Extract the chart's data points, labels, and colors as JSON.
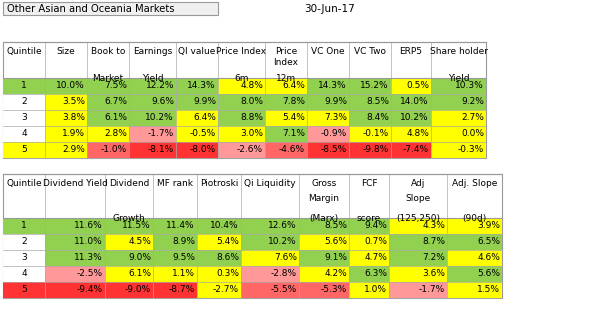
{
  "title_left": "Other Asian and Oceania Markets",
  "title_right": "30-Jun-17",
  "table1_data": [
    [
      "1",
      "10.0%",
      "7.5%",
      "12.2%",
      "14.3%",
      "4.8%",
      "6.4%",
      "14.3%",
      "15.2%",
      "0.5%",
      "10.3%"
    ],
    [
      "2",
      "3.5%",
      "6.7%",
      "9.6%",
      "9.9%",
      "8.0%",
      "7.8%",
      "9.9%",
      "8.5%",
      "14.0%",
      "9.2%"
    ],
    [
      "3",
      "3.8%",
      "6.1%",
      "10.2%",
      "6.4%",
      "8.8%",
      "5.4%",
      "7.3%",
      "8.4%",
      "10.2%",
      "2.7%"
    ],
    [
      "4",
      "1.9%",
      "2.8%",
      "-1.7%",
      "-0.5%",
      "3.0%",
      "7.1%",
      "-0.9%",
      "-0.1%",
      "4.8%",
      "0.0%"
    ],
    [
      "5",
      "2.9%",
      "-1.0%",
      "-8.1%",
      "-8.0%",
      "-2.6%",
      "-4.6%",
      "-8.5%",
      "-9.8%",
      "-7.4%",
      "-0.3%"
    ]
  ],
  "table1_colors": [
    [
      "#92d050",
      "#92d050",
      "#92d050",
      "#92d050",
      "#92d050",
      "#ffff00",
      "#ffff00",
      "#92d050",
      "#92d050",
      "#ffff00",
      "#92d050"
    ],
    [
      "#ffffff",
      "#ffff00",
      "#92d050",
      "#92d050",
      "#92d050",
      "#92d050",
      "#92d050",
      "#92d050",
      "#92d050",
      "#92d050",
      "#92d050"
    ],
    [
      "#ffffff",
      "#ffff00",
      "#92d050",
      "#92d050",
      "#ffff00",
      "#92d050",
      "#ffff00",
      "#ffff00",
      "#92d050",
      "#92d050",
      "#ffff00"
    ],
    [
      "#ffffff",
      "#ffff00",
      "#ffff00",
      "#ff9999",
      "#ffff00",
      "#ffff00",
      "#92d050",
      "#ff9999",
      "#ffff00",
      "#ffff00",
      "#ffff00"
    ],
    [
      "#ffff00",
      "#ffff00",
      "#ff6666",
      "#ff3333",
      "#ff3333",
      "#ff9999",
      "#ff6666",
      "#ff3333",
      "#ff3333",
      "#ff3333",
      "#ffff00"
    ]
  ],
  "table1_header_lines": [
    [
      "Quintile",
      "",
      ""
    ],
    [
      "Size",
      "",
      ""
    ],
    [
      "Book to",
      "",
      "Market"
    ],
    [
      "Earnings",
      "",
      "Yield"
    ],
    [
      "QI value",
      "",
      ""
    ],
    [
      "Price Index",
      "",
      "6m"
    ],
    [
      "Price",
      "Index",
      "12m"
    ],
    [
      "VC One",
      "",
      ""
    ],
    [
      "VC Two",
      "",
      ""
    ],
    [
      "ERP5",
      "",
      ""
    ],
    [
      "Share holder",
      "",
      "Yield"
    ]
  ],
  "table1_col_widths": [
    42,
    42,
    42,
    47,
    42,
    47,
    42,
    42,
    42,
    40,
    55
  ],
  "table2_data": [
    [
      "1",
      "11.6%",
      "11.5%",
      "11.4%",
      "10.4%",
      "12.6%",
      "8.5%",
      "9.4%",
      "4.3%",
      "3.9%"
    ],
    [
      "2",
      "11.0%",
      "4.5%",
      "8.9%",
      "5.4%",
      "10.2%",
      "5.6%",
      "0.7%",
      "8.7%",
      "6.5%"
    ],
    [
      "3",
      "11.3%",
      "9.0%",
      "9.5%",
      "8.6%",
      "7.6%",
      "9.1%",
      "4.7%",
      "7.2%",
      "4.6%"
    ],
    [
      "4",
      "-2.5%",
      "6.1%",
      "1.1%",
      "0.3%",
      "-2.8%",
      "4.2%",
      "6.3%",
      "3.6%",
      "5.6%"
    ],
    [
      "5",
      "-9.4%",
      "-9.0%",
      "-8.7%",
      "-2.7%",
      "-5.5%",
      "-5.3%",
      "1.0%",
      "-1.7%",
      "1.5%"
    ]
  ],
  "table2_colors": [
    [
      "#92d050",
      "#92d050",
      "#92d050",
      "#92d050",
      "#92d050",
      "#92d050",
      "#92d050",
      "#92d050",
      "#ffff00",
      "#ffff00"
    ],
    [
      "#ffffff",
      "#92d050",
      "#ffff00",
      "#92d050",
      "#ffff00",
      "#92d050",
      "#ffff00",
      "#ffff00",
      "#92d050",
      "#92d050"
    ],
    [
      "#ffffff",
      "#92d050",
      "#92d050",
      "#92d050",
      "#92d050",
      "#ffff00",
      "#92d050",
      "#ffff00",
      "#92d050",
      "#ffff00"
    ],
    [
      "#ffffff",
      "#ff9999",
      "#ffff00",
      "#ffff00",
      "#ffff00",
      "#ff9999",
      "#ffff00",
      "#92d050",
      "#ffff00",
      "#92d050"
    ],
    [
      "#ff3333",
      "#ff3333",
      "#ff3333",
      "#ff3333",
      "#ffff00",
      "#ff6666",
      "#ff6666",
      "#ffff00",
      "#ff9999",
      "#ffff00"
    ]
  ],
  "table2_header_lines": [
    [
      "Quintile",
      "",
      ""
    ],
    [
      "Dividend Yield",
      "",
      ""
    ],
    [
      "Dividend",
      "",
      "Growth"
    ],
    [
      "MF rank",
      "",
      ""
    ],
    [
      "Piotroski",
      "",
      ""
    ],
    [
      "Qi Liquidity",
      "",
      ""
    ],
    [
      "Gross",
      "Margin",
      "(Marx)"
    ],
    [
      "FCF",
      "",
      "score"
    ],
    [
      "Adj",
      "Slope",
      "(125,250)"
    ],
    [
      "Adj. Slope",
      "",
      "(90d)"
    ]
  ],
  "table2_col_widths": [
    42,
    60,
    48,
    44,
    44,
    58,
    50,
    40,
    58,
    55
  ],
  "background_color": "#ffffff",
  "line_color": "#aaaaaa",
  "header_line_color": "#999999"
}
